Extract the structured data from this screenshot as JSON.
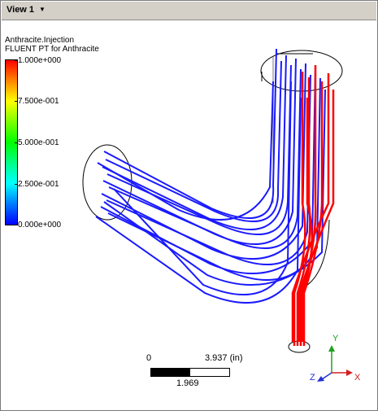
{
  "view_tab": {
    "label": "View 1",
    "dropdown_icon": "caret-down-icon"
  },
  "legend": {
    "title_line1": "Anthracite.Injection",
    "title_line2": "FLUENT PT for Anthracite",
    "ticks": [
      "1.000e+000",
      "7.500e-001",
      "5.000e-001",
      "2.500e-001",
      "0.000e+000"
    ],
    "colors": {
      "high": "#ff0000",
      "low": "#0000ff"
    }
  },
  "scale": {
    "start": "0",
    "end": "3.937",
    "unit": "(in)",
    "mid": "1.969"
  },
  "triad": {
    "x": "X",
    "y": "Y",
    "z": "Z",
    "x_color": "#d02020",
    "y_color": "#20a020",
    "z_color": "#2030d0"
  },
  "streamline_colors": {
    "blue": "#1a1aff",
    "red": "#ff0000"
  }
}
